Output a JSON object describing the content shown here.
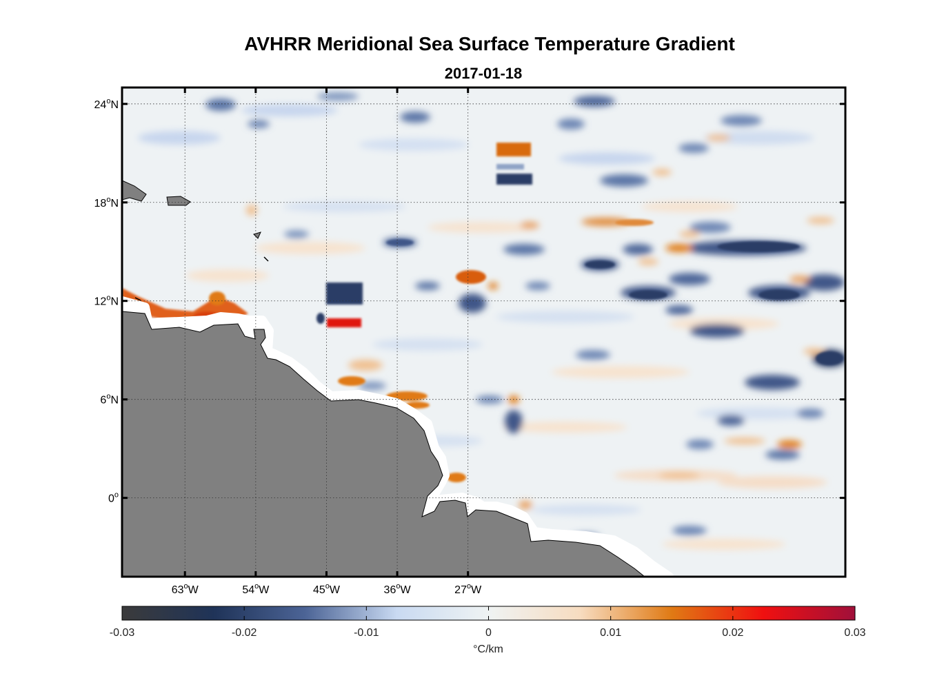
{
  "title": "AVHRR Meridional Sea Surface Temperature Gradient",
  "date": "2017-01-18",
  "map": {
    "lon_range": [
      -71,
      21
    ],
    "lat_range": [
      -4.8,
      25
    ],
    "lat_ticks": [
      {
        "value": 24,
        "label": "24°N"
      },
      {
        "value": 18,
        "label": "18°N"
      },
      {
        "value": 12,
        "label": "12°N"
      },
      {
        "value": 6,
        "label": "6°N"
      },
      {
        "value": 0,
        "label": "0°"
      }
    ],
    "lon_ticks": [
      {
        "value": -63,
        "label": "63°W"
      },
      {
        "value": -54,
        "label": "54°W"
      },
      {
        "value": -45,
        "label": "45°W"
      },
      {
        "value": -36,
        "label": "36°W"
      },
      {
        "value": -27,
        "label": "27°W"
      }
    ],
    "gridlines": true,
    "land_color": "#808080",
    "frame_color": "#000000"
  },
  "colorbar": {
    "range": [
      -0.03,
      0.03
    ],
    "ticks": [
      {
        "value": -0.03,
        "label": "-0.03"
      },
      {
        "value": -0.02,
        "label": "-0.02"
      },
      {
        "value": -0.01,
        "label": "-0.01"
      },
      {
        "value": 0,
        "label": "0"
      },
      {
        "value": 0.01,
        "label": "0.01"
      },
      {
        "value": 0.02,
        "label": "0.02"
      },
      {
        "value": 0.03,
        "label": "0.03"
      }
    ],
    "unit": "°C/km",
    "colors": [
      "#3b3b3b",
      "#1f3358",
      "#4c6496",
      "#c9daf2",
      "#eff3f3",
      "#f7dcc0",
      "#e07a14",
      "#f01010",
      "#a0103a"
    ]
  }
}
